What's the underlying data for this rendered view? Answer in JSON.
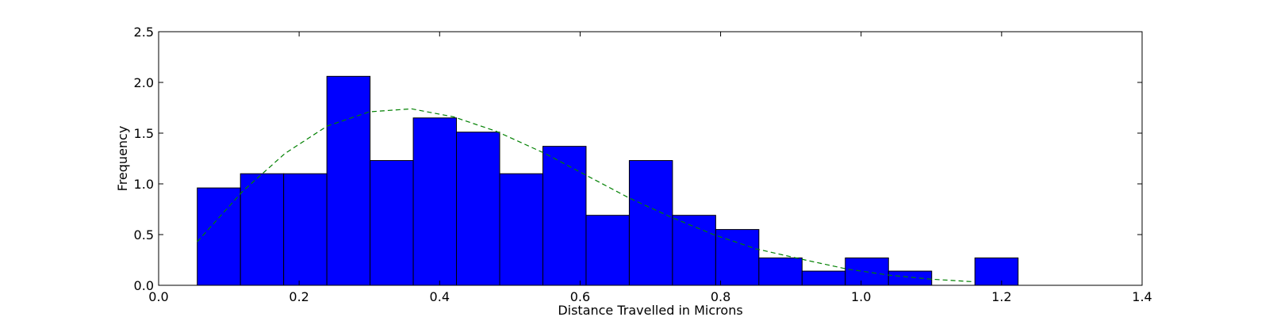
{
  "chart_data": {
    "type": "bar",
    "title": "",
    "xlabel": "Distance Travelled in Microns",
    "ylabel": "Frequency",
    "xlim": [
      0.0,
      1.4
    ],
    "ylim": [
      0.0,
      2.5
    ],
    "xticks": [
      "0.0",
      "0.2",
      "0.4",
      "0.6",
      "0.8",
      "1.0",
      "1.2",
      "1.4"
    ],
    "yticks": [
      "0.0",
      "0.5",
      "1.0",
      "1.5",
      "2.0",
      "2.5"
    ],
    "grid": false,
    "bar_color": "#0000ff",
    "curve_color": "#008000",
    "histogram": {
      "bin_edges": [
        0.055,
        0.1165,
        0.178,
        0.2395,
        0.301,
        0.3625,
        0.424,
        0.4855,
        0.547,
        0.6085,
        0.67,
        0.7315,
        0.793,
        0.8545,
        0.916,
        0.9775,
        1.039,
        1.1005,
        1.162,
        1.2235
      ],
      "values": [
        0.96,
        1.1,
        1.1,
        2.06,
        1.23,
        1.65,
        1.51,
        1.1,
        1.37,
        0.69,
        1.23,
        0.69,
        0.55,
        0.27,
        0.14,
        0.27,
        0.14,
        0.0,
        0.27
      ]
    },
    "fit_curve": {
      "style": "dashed",
      "x": [
        0.055,
        0.12,
        0.18,
        0.24,
        0.3,
        0.36,
        0.42,
        0.48,
        0.55,
        0.61,
        0.67,
        0.73,
        0.79,
        0.85,
        0.92,
        0.98,
        1.04,
        1.1,
        1.16
      ],
      "y": [
        0.43,
        0.93,
        1.3,
        1.57,
        1.71,
        1.74,
        1.66,
        1.52,
        1.3,
        1.08,
        0.86,
        0.67,
        0.5,
        0.36,
        0.25,
        0.16,
        0.1,
        0.06,
        0.035
      ]
    }
  }
}
